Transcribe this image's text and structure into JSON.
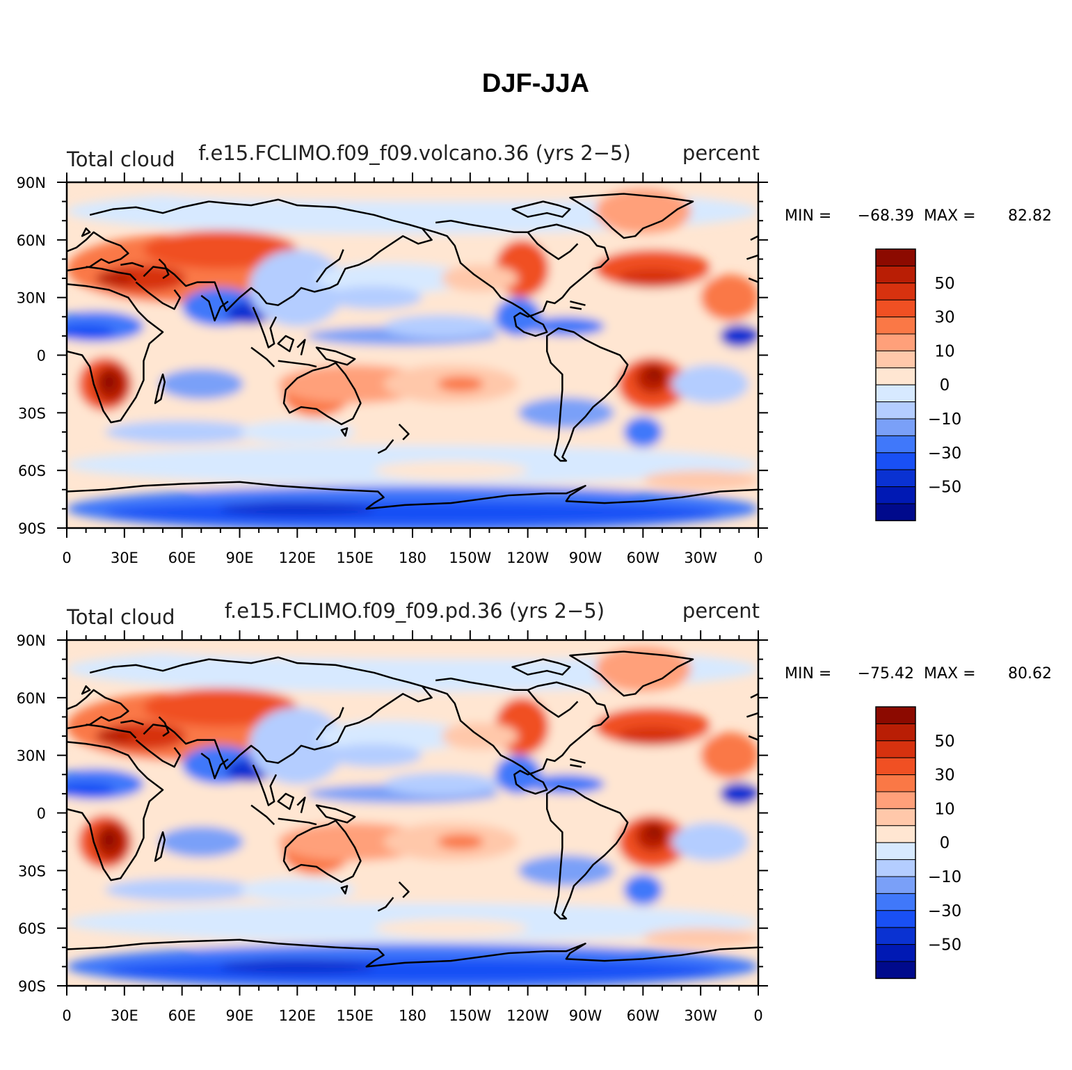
{
  "figure_title": "DJF-JJA",
  "colorbar": {
    "colors": [
      "#000a8c",
      "#0019b4",
      "#0a32d2",
      "#1950f5",
      "#4078fa",
      "#7aa0f8",
      "#b4cdff",
      "#d7e9ff",
      "#ffe6d2",
      "#ffc8aa",
      "#ffa07a",
      "#fa7846",
      "#f05023",
      "#d7320f",
      "#b91e05",
      "#8c0a00"
    ],
    "labels": [
      "−50",
      "−30",
      "−10",
      "0",
      "10",
      "30",
      "50"
    ]
  },
  "axes": {
    "lon_labels": [
      "0",
      "30E",
      "60E",
      "90E",
      "120E",
      "150E",
      "180",
      "150W",
      "120W",
      "90W",
      "60W",
      "30W",
      "0"
    ],
    "lat_labels": [
      "90N",
      "60N",
      "30N",
      "0",
      "30S",
      "60S",
      "90S"
    ]
  },
  "panels": [
    {
      "left_title": "Total cloud",
      "center_title": "f.e15.FCLIMO.f09_f09.volcano.36 (yrs 2−5)",
      "right_title": "percent",
      "min_label": "MIN =",
      "min_value": "−68.39",
      "max_label": "MAX =",
      "max_value": "82.82"
    },
    {
      "left_title": "Total cloud",
      "center_title": "f.e15.FCLIMO.f09_f09.pd.36 (yrs 2−5)",
      "right_title": "percent",
      "min_label": "MIN =",
      "min_value": "−75.42",
      "max_label": "MAX =",
      "max_value": "80.62"
    }
  ]
}
